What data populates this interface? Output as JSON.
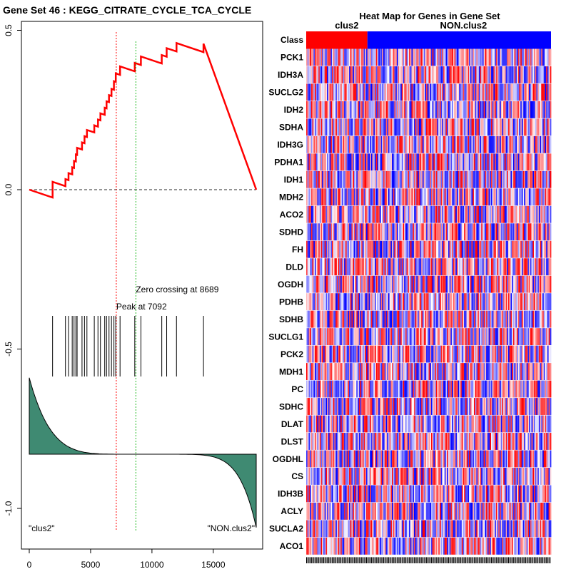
{
  "title": "Gene Set  46 : KEGG_CITRATE_CYCLE_TCA_CYCLE",
  "colors": {
    "es_line": "#ff0000",
    "zero_line": "#555555",
    "peak_line": "#ff0000",
    "zero_cross_line": "#22bb22",
    "metric_fill": "#3f8a72",
    "hit_line": "#000000",
    "class_pos": "#ff0000",
    "class_neg": "#0000ff",
    "heat_high": "#ff0000",
    "heat_low": "#0000ff"
  },
  "chart_data": [
    {
      "type": "line",
      "name": "running-enrichment-score",
      "title": "Gene Set  46 : KEGG_CITRATE_CYCLE_TCA_CYCLE",
      "xlabel": "",
      "ylabel": "",
      "xlim": [
        0,
        18500
      ],
      "ylim": [
        -1.12,
        0.53
      ],
      "x_ticks": [
        0,
        5000,
        10000,
        15000
      ],
      "x_tick_labels": [
        "0",
        "5000",
        "10000",
        "15000"
      ],
      "y_ticks": [
        0.5,
        0.0,
        -0.5,
        -1.0
      ],
      "y_tick_labels": [
        "0.5",
        "0.0",
        "-0.5",
        "-1.0"
      ],
      "total_genes": 18500,
      "hits": [
        1900,
        2950,
        3200,
        3500,
        3650,
        3800,
        3900,
        4300,
        4500,
        4700,
        5300,
        5600,
        5800,
        6150,
        6300,
        6500,
        6700,
        6900,
        7050,
        7400,
        8600,
        9100,
        10800,
        11200,
        12000,
        14200
      ],
      "peak": {
        "x": 7092,
        "label": "Peak at 7092"
      },
      "zero_crossing": {
        "x": 8689,
        "label": "Zero crossing at 8689"
      },
      "class_labels": {
        "left": "\"clus2\"",
        "right": "\"NON.clus2\""
      },
      "metric": {
        "baseline": -0.83,
        "start": -0.59,
        "end": -1.06
      }
    },
    {
      "type": "heatmap",
      "name": "gene-set-heatmap",
      "title": "Heat Map for Genes in Gene Set",
      "row_header": "Class",
      "classes": [
        {
          "name": "clus2",
          "fraction": 0.25
        },
        {
          "name": "NON.clus2",
          "fraction": 0.75
        }
      ],
      "n_samples": 200,
      "genes": [
        "PCK1",
        "IDH3A",
        "SUCLG2",
        "IDH2",
        "SDHA",
        "IDH3G",
        "PDHA1",
        "IDH1",
        "MDH2",
        "ACO2",
        "SDHD",
        "FH",
        "DLD",
        "OGDH",
        "PDHB",
        "SDHB",
        "SUCLG1",
        "PCK2",
        "MDH1",
        "PC",
        "SDHC",
        "DLAT",
        "DLST",
        "OGDHL",
        "CS",
        "IDH3B",
        "ACLY",
        "SUCLA2",
        "ACO1"
      ]
    }
  ]
}
